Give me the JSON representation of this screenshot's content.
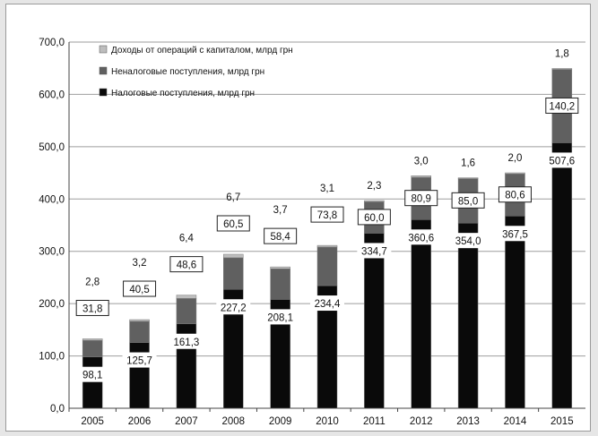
{
  "chart_data": {
    "type": "bar",
    "stacked": true,
    "title": "",
    "xlabel": "",
    "ylabel": "",
    "ylim": [
      0,
      700
    ],
    "y_ticks": [
      "0,0",
      "100,0",
      "200,0",
      "300,0",
      "400,0",
      "500,0",
      "600,0",
      "700,0"
    ],
    "y_tick_values": [
      0,
      100,
      200,
      300,
      400,
      500,
      600,
      700
    ],
    "grid": true,
    "legend_position": "top-left",
    "categories": [
      "2005",
      "2006",
      "2007",
      "2008",
      "2009",
      "2010",
      "2011",
      "2012",
      "2013",
      "2014",
      "2015"
    ],
    "series": [
      {
        "name": "Налоговые поступления, млрд грн",
        "color": "#0a0a0a",
        "values": [
          98.1,
          125.7,
          161.3,
          227.2,
          208.1,
          234.4,
          334.7,
          360.6,
          354.0,
          367.5,
          507.6
        ],
        "labels": [
          "98,1",
          "125,7",
          "161,3",
          "227,2",
          "208,1",
          "234,4",
          "334,7",
          "360,6",
          "354,0",
          "367,5",
          "507,6"
        ]
      },
      {
        "name": "Неналоговые поступления, млрд грн",
        "color": "#606060",
        "values": [
          31.8,
          40.5,
          48.6,
          60.5,
          58.4,
          73.8,
          60.0,
          80.9,
          85.0,
          80.6,
          140.2
        ],
        "labels": [
          "31,8",
          "40,5",
          "48,6",
          "60,5",
          "58,4",
          "73,8",
          "60,0",
          "80,9",
          "85,0",
          "80,6",
          "140,2"
        ]
      },
      {
        "name": "Доходы от операций с капиталом, млрд грн",
        "color": "#bdbdbd",
        "values": [
          2.8,
          3.2,
          6.4,
          6.7,
          3.7,
          3.1,
          2.3,
          3.0,
          1.6,
          2.0,
          1.8
        ],
        "labels": [
          "2,8",
          "3,2",
          "6,4",
          "6,7",
          "3,7",
          "3,1",
          "2,3",
          "3,0",
          "1,6",
          "2,0",
          "1,8"
        ]
      }
    ],
    "legend_order": [
      2,
      1,
      0
    ]
  }
}
